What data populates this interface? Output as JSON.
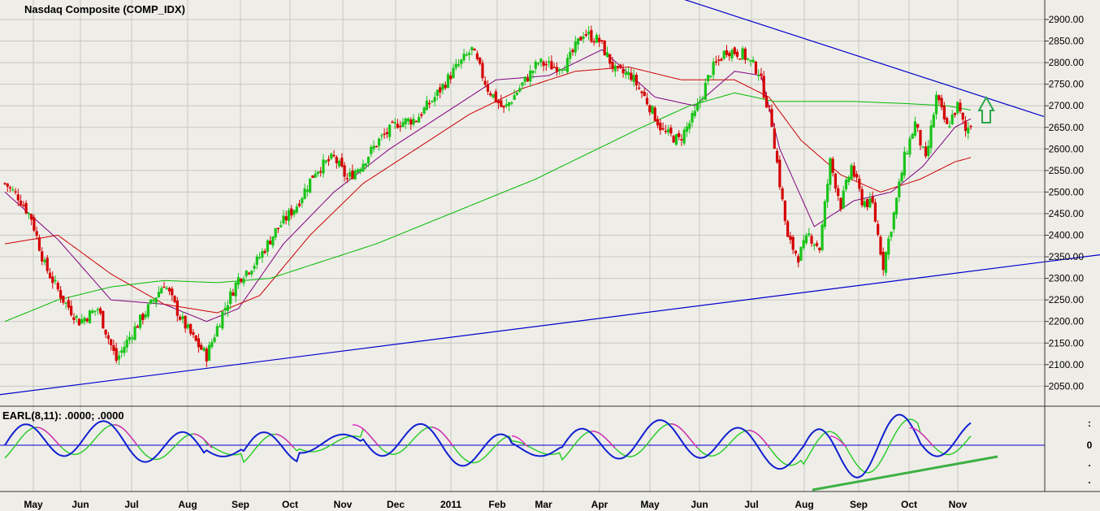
{
  "chart_data": {
    "type": "candlestick",
    "title": "Nasdaq Composite (COMP_IDX)",
    "yticks": [
      "2900.00",
      "2850.00",
      "2800.00",
      "2750.00",
      "2700.00",
      "2650.00",
      "2600.00",
      "2550.00",
      "2500.00",
      "2450.00",
      "2400.00",
      "2350.00",
      "2300.00",
      "2250.00",
      "2200.00",
      "2150.00",
      "2100.00",
      "2050.00"
    ],
    "ylim": [
      2030,
      2910
    ],
    "x_categories": [
      "May",
      "Jun",
      "Jul",
      "Aug",
      "Sep",
      "Oct",
      "Nov",
      "Dec",
      "2011",
      "Feb",
      "Mar",
      "Apr",
      "May",
      "Jun",
      "Jul",
      "Aug",
      "Sep",
      "Oct",
      "Nov"
    ],
    "close_anchors": [
      [
        0,
        2520
      ],
      [
        5,
        2490
      ],
      [
        10,
        2440
      ],
      [
        15,
        2330
      ],
      [
        22,
        2250
      ],
      [
        28,
        2200
      ],
      [
        35,
        2230
      ],
      [
        42,
        2110
      ],
      [
        48,
        2175
      ],
      [
        55,
        2240
      ],
      [
        60,
        2290
      ],
      [
        66,
        2210
      ],
      [
        71,
        2160
      ],
      [
        76,
        2120
      ],
      [
        82,
        2220
      ],
      [
        88,
        2300
      ],
      [
        95,
        2340
      ],
      [
        102,
        2410
      ],
      [
        110,
        2470
      ],
      [
        117,
        2550
      ],
      [
        124,
        2580
      ],
      [
        129,
        2530
      ],
      [
        135,
        2570
      ],
      [
        141,
        2620
      ],
      [
        148,
        2660
      ],
      [
        155,
        2670
      ],
      [
        162,
        2720
      ],
      [
        169,
        2780
      ],
      [
        176,
        2830
      ],
      [
        182,
        2740
      ],
      [
        188,
        2690
      ],
      [
        195,
        2750
      ],
      [
        201,
        2800
      ],
      [
        207,
        2790
      ],
      [
        212,
        2800
      ],
      [
        218,
        2870
      ],
      [
        224,
        2850
      ],
      [
        230,
        2780
      ],
      [
        236,
        2770
      ],
      [
        242,
        2710
      ],
      [
        248,
        2640
      ],
      [
        254,
        2620
      ],
      [
        260,
        2680
      ],
      [
        266,
        2780
      ],
      [
        272,
        2830
      ],
      [
        278,
        2820
      ],
      [
        284,
        2780
      ],
      [
        289,
        2660
      ],
      [
        292,
        2520
      ],
      [
        295,
        2390
      ],
      [
        299,
        2350
      ],
      [
        303,
        2400
      ],
      [
        307,
        2370
      ],
      [
        311,
        2570
      ],
      [
        315,
        2470
      ],
      [
        319,
        2560
      ],
      [
        323,
        2480
      ],
      [
        327,
        2470
      ],
      [
        331,
        2330
      ],
      [
        335,
        2450
      ],
      [
        339,
        2580
      ],
      [
        343,
        2660
      ],
      [
        347,
        2570
      ],
      [
        351,
        2720
      ],
      [
        355,
        2650
      ],
      [
        359,
        2700
      ],
      [
        362,
        2640
      ],
      [
        364,
        2660
      ]
    ],
    "series": [
      {
        "type": "line",
        "color": "#800080",
        "values_anchor": [
          [
            0,
            2500
          ],
          [
            20,
            2390
          ],
          [
            40,
            2250
          ],
          [
            60,
            2240
          ],
          [
            76,
            2200
          ],
          [
            88,
            2230
          ],
          [
            105,
            2380
          ],
          [
            124,
            2500
          ],
          [
            145,
            2600
          ],
          [
            165,
            2680
          ],
          [
            185,
            2760
          ],
          [
            205,
            2770
          ],
          [
            225,
            2830
          ],
          [
            245,
            2720
          ],
          [
            260,
            2700
          ],
          [
            275,
            2780
          ],
          [
            285,
            2770
          ],
          [
            292,
            2600
          ],
          [
            305,
            2420
          ],
          [
            320,
            2480
          ],
          [
            334,
            2500
          ],
          [
            346,
            2560
          ],
          [
            358,
            2650
          ],
          [
            364,
            2670
          ]
        ]
      },
      {
        "type": "line",
        "color": "#cc0000",
        "values_anchor": [
          [
            0,
            2380
          ],
          [
            20,
            2400
          ],
          [
            40,
            2310
          ],
          [
            60,
            2240
          ],
          [
            80,
            2220
          ],
          [
            96,
            2260
          ],
          [
            115,
            2400
          ],
          [
            135,
            2520
          ],
          [
            155,
            2600
          ],
          [
            175,
            2680
          ],
          [
            195,
            2740
          ],
          [
            215,
            2780
          ],
          [
            235,
            2790
          ],
          [
            255,
            2760
          ],
          [
            275,
            2760
          ],
          [
            288,
            2720
          ],
          [
            300,
            2620
          ],
          [
            315,
            2540
          ],
          [
            330,
            2500
          ],
          [
            345,
            2530
          ],
          [
            358,
            2570
          ],
          [
            364,
            2580
          ]
        ]
      },
      {
        "type": "line",
        "color": "#00bb00",
        "values_anchor": [
          [
            0,
            2200
          ],
          [
            20,
            2250
          ],
          [
            40,
            2280
          ],
          [
            60,
            2295
          ],
          [
            80,
            2290
          ],
          [
            100,
            2300
          ],
          [
            120,
            2340
          ],
          [
            140,
            2380
          ],
          [
            160,
            2430
          ],
          [
            180,
            2480
          ],
          [
            200,
            2530
          ],
          [
            220,
            2590
          ],
          [
            240,
            2650
          ],
          [
            258,
            2700
          ],
          [
            275,
            2730
          ],
          [
            290,
            2710
          ],
          [
            305,
            2710
          ],
          [
            320,
            2710
          ],
          [
            340,
            2705
          ],
          [
            355,
            2700
          ],
          [
            364,
            2690
          ]
        ]
      }
    ],
    "trendlines": [
      {
        "color": "#0000cc",
        "from": [
          -2,
          2030
        ],
        "to": [
          1356,
          2355
        ],
        "unit": "pixel-x,price"
      },
      {
        "color": "#0000cc",
        "from": [
          820,
          2960
        ],
        "to": [
          1285,
          2675
        ],
        "unit": "pixel-x,price"
      }
    ],
    "indicator": {
      "label": "EARL(8,11): .0000; .0000",
      "yticks": [
        ":",
        "0",
        ".",
        "."
      ]
    }
  }
}
